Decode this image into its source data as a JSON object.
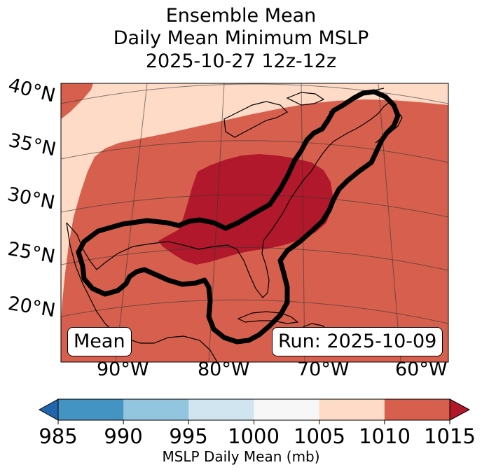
{
  "title_lines": [
    "Ensemble Mean",
    "Daily Mean Minimum MSLP",
    "2025-10-27 12z-12z"
  ],
  "lat_labels": [
    "40°N",
    "35°N",
    "30°N",
    "25°N",
    "20°N"
  ],
  "lon_labels": [
    "90°W",
    "80°W",
    "70°W",
    "60°W"
  ],
  "mean_box": "Mean",
  "run_box": "Run: 2025-10-09",
  "colorbar": {
    "title": "MSLP Daily Mean (mb)",
    "ticks": [
      "985",
      "990",
      "995",
      "1000",
      "1005",
      "1010",
      "1015"
    ],
    "colors": [
      "#2166ac",
      "#4393c3",
      "#92c5de",
      "#d1e5f0",
      "#f7f7f7",
      "#fddbc7",
      "#d6604d",
      "#b2182b"
    ]
  },
  "colors": {
    "band_1005_1010": "#fddbc7",
    "band_1010_1015": "#d6604d",
    "band_over_1015": "#b2182b",
    "contour": "#000000"
  }
}
